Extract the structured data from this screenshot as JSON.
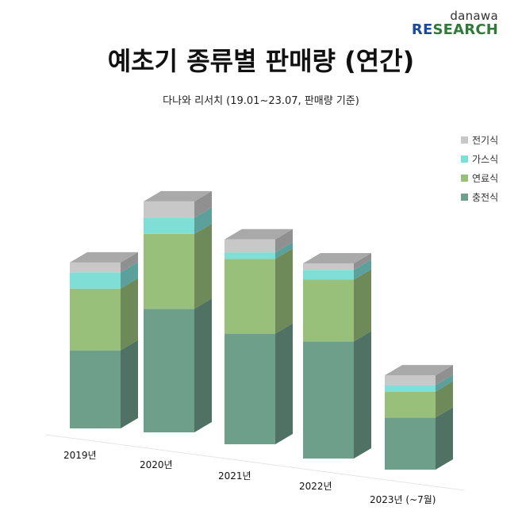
{
  "brand": {
    "top": "danawa",
    "re": "RE",
    "rest": "SEARCH"
  },
  "title": "예초기 종류별 판매량 (연간)",
  "subtitle": "다나와 리서치 (19.01~23.07, 판매량 기준)",
  "colors": {
    "전기식": "#c8c8c8",
    "가스식": "#7fded6",
    "연료식": "#98c07a",
    "충전식": "#6e9f8b"
  },
  "chart_data": {
    "type": "bar",
    "stacked": true,
    "three_d": true,
    "categories": [
      "2019년",
      "2020년",
      "2021년",
      "2022년",
      "2023년 (~7월)"
    ],
    "legend_position": "right",
    "series": [
      {
        "name": "충전식",
        "values": [
          24,
          38,
          34,
          36,
          16
        ]
      },
      {
        "name": "연료식",
        "values": [
          19,
          23,
          23,
          19,
          8
        ]
      },
      {
        "name": "가스식",
        "values": [
          5,
          5,
          2,
          3,
          2
        ]
      },
      {
        "name": "전기식",
        "values": [
          3,
          5,
          4,
          2,
          3
        ]
      }
    ],
    "legend_order": [
      "전기식",
      "가스식",
      "연료식",
      "충전식"
    ],
    "value_axis_shown": false,
    "grid": false
  }
}
